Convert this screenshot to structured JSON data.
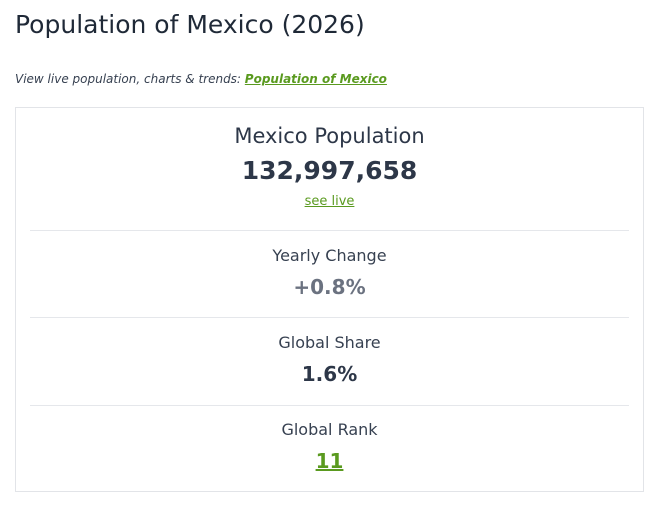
{
  "page": {
    "title": "Population of Mexico (2026)"
  },
  "subtitle": {
    "prefix": "View live population, charts & trends: ",
    "link_label": "Population of Mexico"
  },
  "stats": {
    "population": {
      "label": "Mexico Population",
      "value": "132,997,658",
      "see_live": "see live"
    },
    "yearly_change": {
      "label": "Yearly Change",
      "value": "+0.8%"
    },
    "global_share": {
      "label": "Global Share",
      "value": "1.6%"
    },
    "global_rank": {
      "label": "Global Rank",
      "value": "11"
    }
  },
  "colors": {
    "link_green": "#5a9a1f",
    "text_dark": "#2d3748",
    "text_muted": "#6b7280",
    "border": "#e2e4e8"
  }
}
